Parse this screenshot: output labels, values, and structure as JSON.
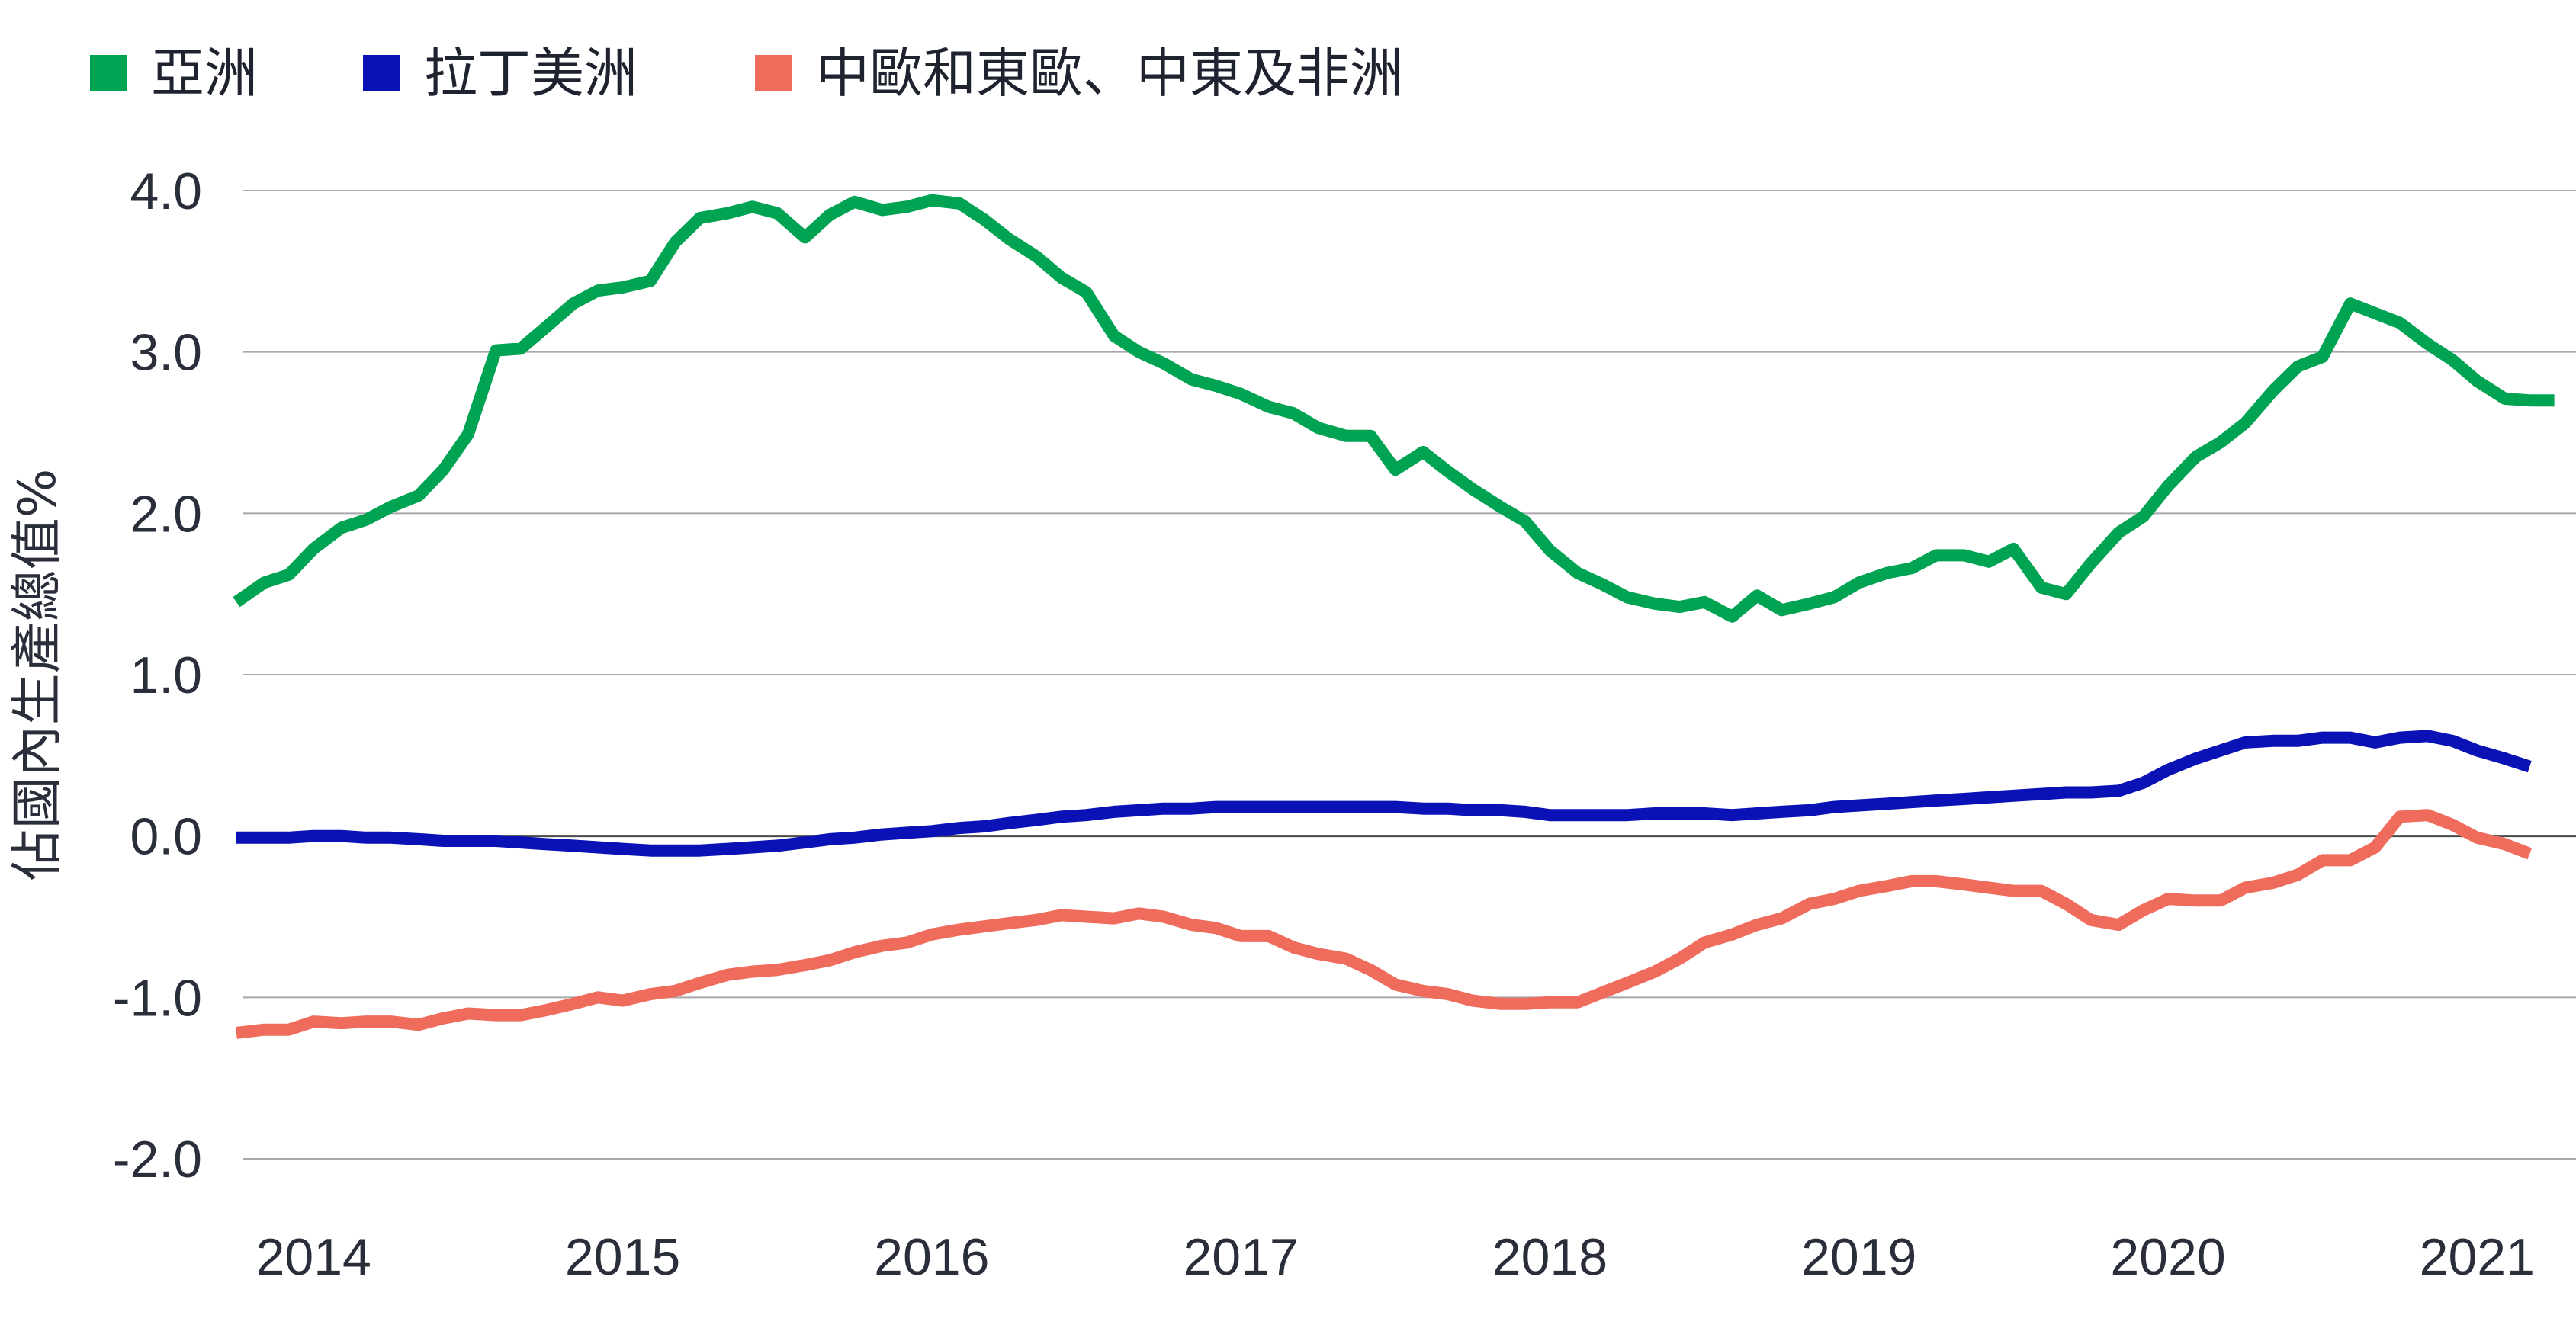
{
  "chart_data": {
    "type": "line",
    "title": "",
    "xlabel": "",
    "ylabel": "佔國內生產總值%",
    "ylim": [
      -2.0,
      4.0
    ],
    "y_ticks": [
      "4.0",
      "3.0",
      "2.0",
      "1.0",
      "0.0",
      "-1.0",
      "-2.0"
    ],
    "x_ticks": [
      "2014",
      "2015",
      "2016",
      "2017",
      "2018",
      "2019",
      "2020",
      "2021"
    ],
    "xlim": [
      2013.85,
      2021.4
    ],
    "grid": true,
    "legend_position": "top-left",
    "series": [
      {
        "name": "亞洲",
        "color": "#00a352",
        "x": [
          2013.83,
          2013.92,
          2014.0,
          2014.08,
          2014.17,
          2014.25,
          2014.33,
          2014.42,
          2014.5,
          2014.58,
          2014.67,
          2014.75,
          2014.83,
          2014.92,
          2015.0,
          2015.08,
          2015.17,
          2015.25,
          2015.33,
          2015.42,
          2015.5,
          2015.58,
          2015.67,
          2015.75,
          2015.83,
          2015.92,
          2016.0,
          2016.08,
          2016.17,
          2016.25,
          2016.33,
          2016.42,
          2016.5,
          2016.58,
          2016.67,
          2016.75,
          2016.83,
          2016.92,
          2017.0,
          2017.08,
          2017.17,
          2017.25,
          2017.33,
          2017.42,
          2017.5,
          2017.58,
          2017.67,
          2017.75,
          2017.83,
          2017.92,
          2018.0,
          2018.08,
          2018.17,
          2018.25,
          2018.33,
          2018.42,
          2018.5,
          2018.58,
          2018.67,
          2018.75,
          2018.83,
          2018.92,
          2019.0,
          2019.08,
          2019.17,
          2019.25,
          2019.33,
          2019.42,
          2019.5,
          2019.58,
          2019.67,
          2019.75,
          2019.83,
          2019.92,
          2020.0,
          2020.08,
          2020.17,
          2020.25,
          2020.33,
          2020.42,
          2020.5,
          2020.58,
          2020.67,
          2020.75,
          2020.83,
          2020.92,
          2021.0,
          2021.08,
          2021.17,
          2021.25,
          2021.33
        ],
        "values": [
          1.45,
          1.57,
          1.62,
          1.78,
          1.91,
          1.96,
          2.04,
          2.11,
          2.27,
          2.49,
          3.01,
          3.02,
          3.15,
          3.3,
          3.38,
          3.4,
          3.44,
          3.68,
          3.83,
          3.86,
          3.9,
          3.86,
          3.71,
          3.85,
          3.93,
          3.88,
          3.9,
          3.94,
          3.92,
          3.82,
          3.7,
          3.59,
          3.46,
          3.37,
          3.1,
          3.0,
          2.93,
          2.83,
          2.79,
          2.74,
          2.66,
          2.62,
          2.53,
          2.48,
          2.48,
          2.27,
          2.38,
          2.26,
          2.15,
          2.04,
          1.95,
          1.77,
          1.63,
          1.56,
          1.48,
          1.44,
          1.42,
          1.45,
          1.36,
          1.49,
          1.4,
          1.44,
          1.48,
          1.57,
          1.63,
          1.66,
          1.74,
          1.74,
          1.7,
          1.78,
          1.54,
          1.5,
          1.69,
          1.88,
          1.98,
          2.17,
          2.35,
          2.44,
          2.56,
          2.76,
          2.91,
          2.97,
          3.3,
          3.24,
          3.18,
          3.05,
          2.95,
          2.82,
          2.71,
          2.7,
          2.7
        ]
      },
      {
        "name": "拉丁美洲",
        "color": "#0a12b5",
        "x": [
          2013.83,
          2013.92,
          2014.0,
          2014.08,
          2014.17,
          2014.25,
          2014.33,
          2014.42,
          2014.5,
          2014.58,
          2014.67,
          2014.75,
          2014.83,
          2014.92,
          2015.0,
          2015.08,
          2015.17,
          2015.25,
          2015.33,
          2015.42,
          2015.5,
          2015.58,
          2015.67,
          2015.75,
          2015.83,
          2015.92,
          2016.0,
          2016.08,
          2016.17,
          2016.25,
          2016.33,
          2016.42,
          2016.5,
          2016.58,
          2016.67,
          2016.75,
          2016.83,
          2016.92,
          2017.0,
          2017.08,
          2017.17,
          2017.25,
          2017.33,
          2017.42,
          2017.5,
          2017.58,
          2017.67,
          2017.75,
          2017.83,
          2017.92,
          2018.0,
          2018.08,
          2018.17,
          2018.25,
          2018.33,
          2018.42,
          2018.5,
          2018.58,
          2018.67,
          2018.75,
          2018.83,
          2018.92,
          2019.0,
          2019.08,
          2019.17,
          2019.25,
          2019.33,
          2019.42,
          2019.5,
          2019.58,
          2019.67,
          2019.75,
          2019.83,
          2019.92,
          2020.0,
          2020.08,
          2020.17,
          2020.25,
          2020.33,
          2020.42,
          2020.5,
          2020.58,
          2020.67,
          2020.75,
          2020.83,
          2020.92,
          2021.0,
          2021.08,
          2021.17,
          2021.25
        ],
        "values": [
          -0.01,
          -0.01,
          -0.01,
          0.0,
          0.0,
          -0.01,
          -0.01,
          -0.02,
          -0.03,
          -0.03,
          -0.03,
          -0.04,
          -0.05,
          -0.06,
          -0.07,
          -0.08,
          -0.09,
          -0.09,
          -0.09,
          -0.08,
          -0.07,
          -0.06,
          -0.04,
          -0.02,
          -0.01,
          0.01,
          0.02,
          0.03,
          0.05,
          0.06,
          0.08,
          0.1,
          0.12,
          0.13,
          0.15,
          0.16,
          0.17,
          0.17,
          0.18,
          0.18,
          0.18,
          0.18,
          0.18,
          0.18,
          0.18,
          0.18,
          0.17,
          0.17,
          0.16,
          0.16,
          0.15,
          0.13,
          0.13,
          0.13,
          0.13,
          0.14,
          0.14,
          0.14,
          0.13,
          0.14,
          0.15,
          0.16,
          0.18,
          0.19,
          0.2,
          0.21,
          0.22,
          0.23,
          0.24,
          0.25,
          0.26,
          0.27,
          0.27,
          0.28,
          0.33,
          0.41,
          0.48,
          0.53,
          0.58,
          0.59,
          0.59,
          0.61,
          0.61,
          0.58,
          0.61,
          0.62,
          0.59,
          0.53,
          0.48,
          0.43
        ]
      },
      {
        "name": "中歐和東歐、中東及非洲",
        "color": "#ef6b5c",
        "x": [
          2013.83,
          2013.92,
          2014.0,
          2014.08,
          2014.17,
          2014.25,
          2014.33,
          2014.42,
          2014.5,
          2014.58,
          2014.67,
          2014.75,
          2014.83,
          2014.92,
          2015.0,
          2015.08,
          2015.17,
          2015.25,
          2015.33,
          2015.42,
          2015.5,
          2015.58,
          2015.67,
          2015.75,
          2015.83,
          2015.92,
          2016.0,
          2016.08,
          2016.17,
          2016.25,
          2016.33,
          2016.42,
          2016.5,
          2016.58,
          2016.67,
          2016.75,
          2016.83,
          2016.92,
          2017.0,
          2017.08,
          2017.17,
          2017.25,
          2017.33,
          2017.42,
          2017.5,
          2017.58,
          2017.67,
          2017.75,
          2017.83,
          2017.92,
          2018.0,
          2018.08,
          2018.17,
          2018.25,
          2018.33,
          2018.42,
          2018.5,
          2018.58,
          2018.67,
          2018.75,
          2018.83,
          2018.92,
          2019.0,
          2019.08,
          2019.17,
          2019.25,
          2019.33,
          2019.42,
          2019.5,
          2019.58,
          2019.67,
          2019.75,
          2019.83,
          2019.92,
          2020.0,
          2020.08,
          2020.17,
          2020.25,
          2020.33,
          2020.42,
          2020.5,
          2020.58,
          2020.67,
          2020.75,
          2020.83,
          2020.92,
          2021.0,
          2021.08,
          2021.17,
          2021.25
        ],
        "values": [
          -1.22,
          -1.2,
          -1.2,
          -1.15,
          -1.16,
          -1.15,
          -1.15,
          -1.17,
          -1.13,
          -1.1,
          -1.11,
          -1.11,
          -1.08,
          -1.04,
          -1.0,
          -1.02,
          -0.98,
          -0.96,
          -0.91,
          -0.86,
          -0.84,
          -0.83,
          -0.8,
          -0.77,
          -0.72,
          -0.68,
          -0.66,
          -0.61,
          -0.58,
          -0.56,
          -0.54,
          -0.52,
          -0.49,
          -0.5,
          -0.51,
          -0.48,
          -0.5,
          -0.55,
          -0.57,
          -0.62,
          -0.62,
          -0.69,
          -0.73,
          -0.76,
          -0.83,
          -0.92,
          -0.96,
          -0.98,
          -1.02,
          -1.04,
          -1.04,
          -1.03,
          -1.03,
          -0.97,
          -0.91,
          -0.84,
          -0.76,
          -0.66,
          -0.61,
          -0.55,
          -0.51,
          -0.42,
          -0.39,
          -0.34,
          -0.31,
          -0.28,
          -0.28,
          -0.3,
          -0.32,
          -0.34,
          -0.34,
          -0.42,
          -0.52,
          -0.55,
          -0.46,
          -0.39,
          -0.4,
          -0.4,
          -0.32,
          -0.29,
          -0.24,
          -0.15,
          -0.15,
          -0.07,
          0.12,
          0.13,
          0.07,
          -0.01,
          -0.05,
          -0.11
        ]
      }
    ]
  }
}
